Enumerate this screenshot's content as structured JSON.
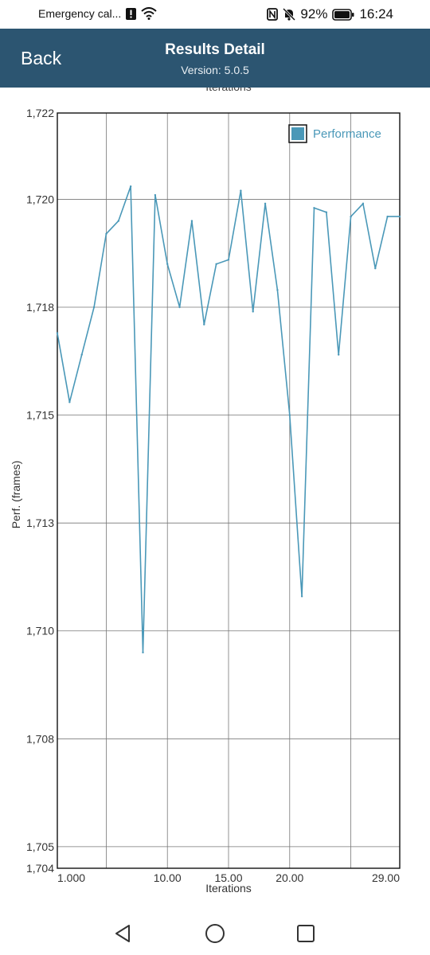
{
  "status_bar": {
    "carrier_text": "Emergency cal...",
    "battery_percent": "92%",
    "time": "16:24"
  },
  "header": {
    "back_label": "Back",
    "title": "Results Detail",
    "version": "Version: 5.0.5"
  },
  "chart_data": {
    "type": "line",
    "xlabel": "Iterations",
    "ylabel": "Perf. (frames)",
    "x_ticks": [
      "1.000",
      "10.00",
      "15.00",
      "20.00",
      "29.00"
    ],
    "x_tick_values": [
      1,
      10,
      15,
      20,
      29
    ],
    "y_ticks": [
      "1,704",
      "1,705",
      "1,708",
      "1,710",
      "1,713",
      "1,715",
      "1,718",
      "1,720",
      "1,722"
    ],
    "y_tick_values": [
      1704.5,
      1705,
      1707.5,
      1710,
      1712.5,
      1715,
      1717.5,
      1720,
      1722
    ],
    "xlim": [
      1,
      29
    ],
    "ylim": [
      1704.5,
      1722
    ],
    "grid": true,
    "legend_position": "top-right",
    "series": [
      {
        "name": "Performance",
        "color": "#4a98b8",
        "x": [
          1,
          2,
          3,
          4,
          5,
          6,
          7,
          8,
          9,
          10,
          11,
          12,
          13,
          14,
          15,
          16,
          17,
          18,
          19,
          20,
          21,
          22,
          23,
          24,
          25,
          26,
          27,
          28,
          29
        ],
        "y": [
          1716.9,
          1715.3,
          1716.4,
          1717.5,
          1719.2,
          1719.5,
          1720.3,
          1709.5,
          1720.1,
          1718.5,
          1717.5,
          1719.5,
          1717.1,
          1718.5,
          1718.6,
          1720.2,
          1717.4,
          1719.9,
          1717.9,
          1715.0,
          1710.8,
          1719.8,
          1719.7,
          1716.4,
          1719.6,
          1719.9,
          1718.4,
          1719.6,
          1719.6
        ]
      }
    ]
  },
  "nav": {
    "back_icon": "triangle-back-icon",
    "home_icon": "circle-home-icon",
    "recents_icon": "square-recents-icon"
  }
}
